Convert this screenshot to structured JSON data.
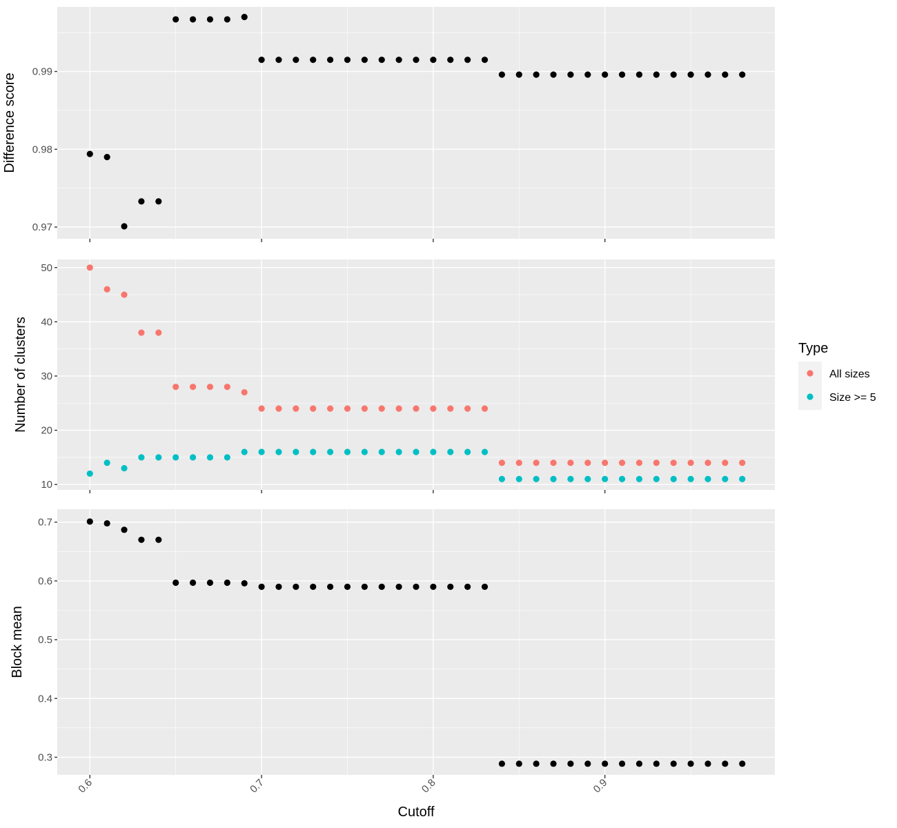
{
  "chart_data": {
    "type": "scatter",
    "xlabel": "Cutoff",
    "x_ticks": [
      0.6,
      0.7,
      0.8,
      0.9
    ],
    "xlim": [
      0.581,
      0.999
    ],
    "x": [
      0.6,
      0.61,
      0.62,
      0.63,
      0.64,
      0.65,
      0.66,
      0.67,
      0.68,
      0.69,
      0.7,
      0.71,
      0.72,
      0.73,
      0.74,
      0.75,
      0.76,
      0.77,
      0.78,
      0.79,
      0.8,
      0.81,
      0.82,
      0.83,
      0.84,
      0.85,
      0.86,
      0.87,
      0.88,
      0.89,
      0.9,
      0.91,
      0.92,
      0.93,
      0.94,
      0.95,
      0.96,
      0.97,
      0.98
    ],
    "legend": {
      "title": "Type",
      "position": "right",
      "entries": [
        {
          "label": "All sizes",
          "color": "#F8766D"
        },
        {
          "label": "Size >= 5",
          "color": "#00BFC4"
        }
      ]
    },
    "panels": [
      {
        "ylabel": "Difference score",
        "ylim": [
          0.9685,
          0.9983
        ],
        "y_ticks": [
          0.97,
          0.98,
          0.99
        ],
        "y_tick_labels": [
          "0.97",
          "0.98",
          "0.99"
        ],
        "series": [
          {
            "color": "#000000",
            "values": [
              0.9794,
              0.979,
              0.9701,
              0.9733,
              0.9733,
              0.9967,
              0.9967,
              0.9967,
              0.9967,
              0.997,
              0.9915,
              0.9915,
              0.9915,
              0.9915,
              0.9915,
              0.9915,
              0.9915,
              0.9915,
              0.9915,
              0.9915,
              0.9915,
              0.9915,
              0.9915,
              0.9915,
              0.9896,
              0.9896,
              0.9896,
              0.9896,
              0.9896,
              0.9896,
              0.9896,
              0.9896,
              0.9896,
              0.9896,
              0.9896,
              0.9896,
              0.9896,
              0.9896,
              0.9896
            ]
          }
        ]
      },
      {
        "ylabel": "Number of clusters",
        "ylim": [
          9.0,
          51.5
        ],
        "y_ticks": [
          10,
          20,
          30,
          40,
          50
        ],
        "y_tick_labels": [
          "10",
          "20",
          "30",
          "40",
          "50"
        ],
        "series": [
          {
            "name": "All sizes",
            "color": "#F8766D",
            "values": [
              50,
              46,
              45,
              38,
              38,
              28,
              28,
              28,
              28,
              27,
              24,
              24,
              24,
              24,
              24,
              24,
              24,
              24,
              24,
              24,
              24,
              24,
              24,
              24,
              14,
              14,
              14,
              14,
              14,
              14,
              14,
              14,
              14,
              14,
              14,
              14,
              14,
              14,
              14
            ]
          },
          {
            "name": "Size >= 5",
            "color": "#00BFC4",
            "values": [
              12,
              14,
              13,
              15,
              15,
              15,
              15,
              15,
              15,
              16,
              16,
              16,
              16,
              16,
              16,
              16,
              16,
              16,
              16,
              16,
              16,
              16,
              16,
              16,
              11,
              11,
              11,
              11,
              11,
              11,
              11,
              11,
              11,
              11,
              11,
              11,
              11,
              11,
              11
            ]
          }
        ]
      },
      {
        "ylabel": "Block mean",
        "ylim": [
          0.27,
          0.722
        ],
        "y_ticks": [
          0.3,
          0.4,
          0.5,
          0.6,
          0.7
        ],
        "y_tick_labels": [
          "0.3",
          "0.4",
          "0.5",
          "0.6",
          "0.7"
        ],
        "series": [
          {
            "color": "#000000",
            "values": [
              0.701,
              0.698,
              0.687,
              0.67,
              0.67,
              0.597,
              0.597,
              0.597,
              0.597,
              0.596,
              0.59,
              0.59,
              0.59,
              0.59,
              0.59,
              0.59,
              0.59,
              0.59,
              0.59,
              0.59,
              0.59,
              0.59,
              0.59,
              0.59,
              0.289,
              0.289,
              0.289,
              0.289,
              0.289,
              0.289,
              0.289,
              0.289,
              0.289,
              0.289,
              0.289,
              0.289,
              0.289,
              0.289,
              0.289
            ]
          }
        ]
      }
    ]
  }
}
